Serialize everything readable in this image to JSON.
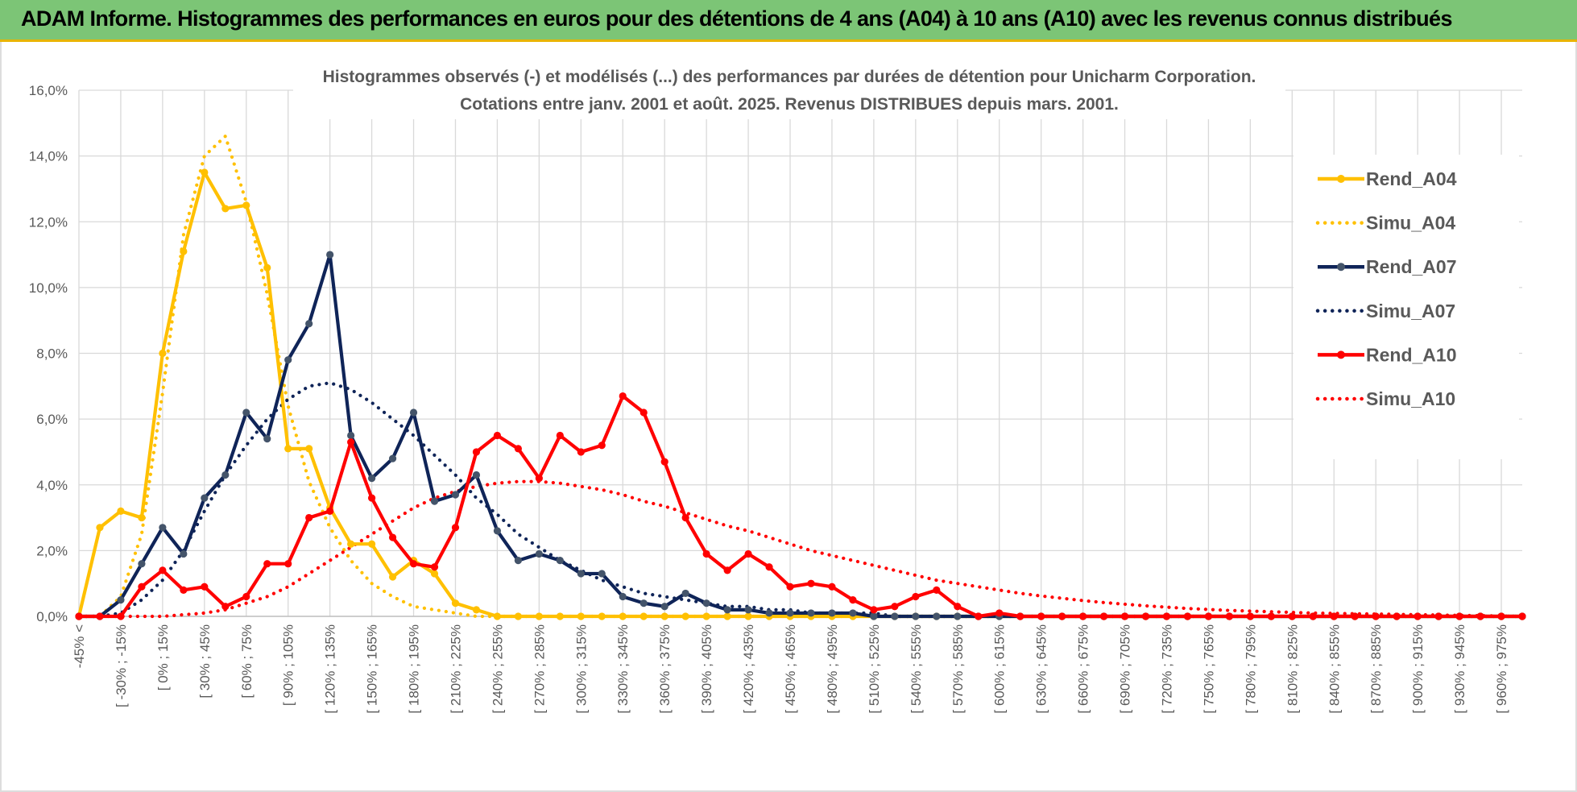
{
  "header": {
    "title": "ADAM Informe. Histogrammes des performances en euros pour des détentions de 4 ans (A04) à 10 ans (A10) avec les revenus connus distribués"
  },
  "colors": {
    "A04": "#ffc000",
    "A07": "#0f2458",
    "A10": "#ff0000",
    "header_bg": "#7cc576",
    "header_border": "#e8b400",
    "grid": "#d9d9d9",
    "text": "#595959"
  },
  "chart_data": {
    "type": "line",
    "title": [
      "Histogrammes observés (-) et modélisés (...) des performances par durées de détention pour Unicharm Corporation.",
      "Cotations entre janv. 2001 et août. 2025. Revenus DISTRIBUES depuis mars. 2001."
    ],
    "xlabel": "",
    "ylabel": "",
    "ylim": [
      0,
      16
    ],
    "y_ticks": [
      "0,0%",
      "2,0%",
      "4,0%",
      "6,0%",
      "8,0%",
      "10,0%",
      "12,0%",
      "14,0%",
      "16,0%"
    ],
    "x_tick_labels": [
      "-45% <",
      "[ -30% ; -15%",
      "[ 0% ; 15%",
      "[ 30% ; 45%",
      "[ 60% ; 75%",
      "[ 90% ; 105%",
      "[ 120% ; 135%",
      "[ 150% ; 165%",
      "[ 180% ; 195%",
      "[ 210% ; 225%",
      "[ 240% ; 255%",
      "[ 270% ; 285%",
      "[ 300% ; 315%",
      "[ 330% ; 345%",
      "[ 360% ; 375%",
      "[ 390% ; 405%",
      "[ 420% ; 435%",
      "[ 450% ; 465%",
      "[ 480% ; 495%",
      "[ 510% ; 525%",
      "[ 540% ; 555%",
      "[ 570% ; 585%",
      "[ 600% ; 615%",
      "[ 630% ; 645%",
      "[ 660% ; 675%",
      "[ 690% ; 705%",
      "[ 720% ; 735%",
      "[ 750% ; 765%",
      "[ 780% ; 795%",
      "[ 810% ; 825%",
      "[ 840% ; 855%",
      "[ 870% ; 885%",
      "[ 900% ; 915%",
      "[ 930% ; 945%",
      "[ 960% ; 975%"
    ],
    "n_categories": 70,
    "grid": true,
    "legend_position": "right",
    "series": [
      {
        "name": "Rend_A04",
        "style": "solid",
        "markers": true,
        "color": "#ffc000",
        "values": [
          0,
          2.7,
          3.2,
          3.0,
          8.0,
          11.1,
          13.5,
          12.4,
          12.5,
          10.6,
          5.1,
          5.1,
          3.3,
          2.2,
          2.2,
          1.2,
          1.7,
          1.3,
          0.4,
          0.2,
          0,
          0,
          0,
          0,
          0,
          0,
          0,
          0,
          0,
          0,
          0,
          0,
          0,
          0,
          0,
          0,
          0,
          0,
          0,
          0,
          0,
          0,
          0,
          0,
          0,
          0,
          0,
          0,
          0,
          0,
          0,
          0,
          0,
          0,
          0,
          0,
          0,
          0,
          0,
          0,
          0,
          0,
          0,
          0,
          0,
          0,
          0,
          0,
          0,
          0
        ]
      },
      {
        "name": "Simu_A04",
        "style": "dotted",
        "markers": false,
        "color": "#ffc000",
        "values": [
          0,
          0,
          0.6,
          2.5,
          6.8,
          11.6,
          14.0,
          14.6,
          12.6,
          9.8,
          6.4,
          4.1,
          2.7,
          1.7,
          1.0,
          0.6,
          0.3,
          0.2,
          0.1,
          0,
          0,
          0,
          0,
          0,
          0,
          0,
          0,
          0,
          0,
          0,
          0,
          0,
          0,
          0,
          0,
          0,
          0,
          0,
          0,
          0,
          0,
          0,
          0,
          0,
          0,
          0,
          0,
          0,
          0,
          0,
          0,
          0,
          0,
          0,
          0,
          0,
          0,
          0,
          0,
          0,
          0,
          0,
          0,
          0,
          0,
          0,
          0,
          0,
          0,
          0
        ]
      },
      {
        "name": "Rend_A07",
        "style": "solid",
        "markers": true,
        "color": "#0f2458",
        "values": [
          0,
          0,
          0.5,
          1.6,
          2.7,
          1.9,
          3.6,
          4.3,
          6.2,
          5.4,
          7.8,
          8.9,
          11.0,
          5.5,
          4.2,
          4.8,
          6.2,
          3.5,
          3.7,
          4.3,
          2.6,
          1.7,
          1.9,
          1.7,
          1.3,
          1.3,
          0.6,
          0.4,
          0.3,
          0.7,
          0.4,
          0.2,
          0.2,
          0.1,
          0.1,
          0.1,
          0.1,
          0.1,
          0,
          0,
          0,
          0,
          0,
          0,
          0,
          0,
          0,
          0,
          0,
          0,
          0,
          0,
          0,
          0,
          0,
          0,
          0,
          0,
          0,
          0,
          0,
          0,
          0,
          0,
          0,
          0,
          0,
          0,
          0,
          0
        ]
      },
      {
        "name": "Simu_A07",
        "style": "dotted",
        "markers": false,
        "color": "#0f2458",
        "values": [
          0,
          0,
          0.1,
          0.5,
          1.1,
          2.0,
          3.2,
          4.3,
          5.2,
          6.0,
          6.6,
          7.0,
          7.1,
          6.9,
          6.5,
          6.0,
          5.5,
          4.9,
          4.3,
          3.6,
          3.1,
          2.5,
          2.1,
          1.7,
          1.4,
          1.1,
          0.9,
          0.7,
          0.6,
          0.5,
          0.4,
          0.3,
          0.3,
          0.2,
          0.2,
          0.1,
          0.1,
          0.1,
          0.1,
          0,
          0,
          0,
          0,
          0,
          0,
          0,
          0,
          0,
          0,
          0,
          0,
          0,
          0,
          0,
          0,
          0,
          0,
          0,
          0,
          0,
          0,
          0,
          0,
          0,
          0,
          0,
          0,
          0,
          0,
          0
        ]
      },
      {
        "name": "Rend_A10",
        "style": "solid",
        "markers": true,
        "color": "#ff0000",
        "values": [
          0,
          0,
          0,
          0.9,
          1.4,
          0.8,
          0.9,
          0.3,
          0.6,
          1.6,
          1.6,
          3.0,
          3.2,
          5.3,
          3.6,
          2.4,
          1.6,
          1.5,
          2.7,
          5.0,
          5.5,
          5.1,
          4.2,
          5.5,
          5.0,
          5.2,
          6.7,
          6.2,
          4.7,
          3.0,
          1.9,
          1.4,
          1.9,
          1.5,
          0.9,
          1.0,
          0.9,
          0.5,
          0.2,
          0.3,
          0.6,
          0.8,
          0.3,
          0,
          0.1,
          0,
          0,
          0,
          0,
          0,
          0,
          0,
          0,
          0,
          0,
          0,
          0,
          0,
          0,
          0,
          0,
          0,
          0,
          0,
          0,
          0,
          0,
          0,
          0,
          0
        ]
      },
      {
        "name": "Simu_A10",
        "style": "dotted",
        "markers": false,
        "color": "#ff0000",
        "values": [
          0,
          0,
          0,
          0,
          0,
          0.05,
          0.1,
          0.2,
          0.4,
          0.6,
          0.9,
          1.3,
          1.7,
          2.1,
          2.5,
          2.9,
          3.3,
          3.6,
          3.8,
          3.95,
          4.05,
          4.1,
          4.1,
          4.05,
          3.95,
          3.85,
          3.7,
          3.5,
          3.35,
          3.15,
          2.95,
          2.75,
          2.6,
          2.4,
          2.2,
          2.0,
          1.85,
          1.7,
          1.55,
          1.4,
          1.25,
          1.1,
          1.0,
          0.9,
          0.8,
          0.7,
          0.62,
          0.55,
          0.48,
          0.42,
          0.37,
          0.32,
          0.28,
          0.24,
          0.21,
          0.18,
          0.16,
          0.14,
          0.12,
          0.1,
          0.09,
          0.08,
          0.07,
          0.06,
          0.05,
          0.04,
          0.03,
          0.02,
          0.01,
          0
        ]
      }
    ]
  }
}
